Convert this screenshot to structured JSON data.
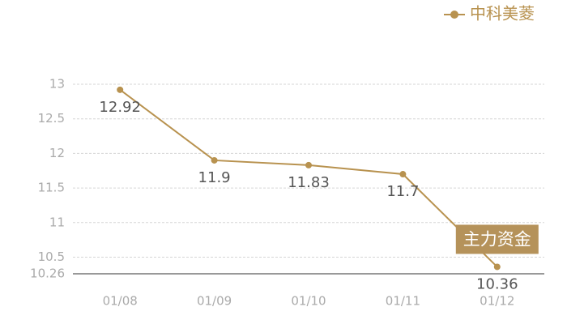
{
  "chart_data": {
    "type": "line",
    "categories": [
      "01/08",
      "01/09",
      "01/10",
      "01/11",
      "01/12"
    ],
    "series": [
      {
        "name": "中科美菱",
        "color": "#b8924f",
        "values": [
          12.92,
          11.9,
          11.83,
          11.7,
          10.36
        ]
      }
    ],
    "ylim": [
      10.26,
      13
    ],
    "yticks": [
      10.26,
      10.5,
      11,
      11.5,
      12,
      12.5,
      13
    ],
    "grid": true,
    "legend": "top-right",
    "annotation": "主力资金"
  }
}
